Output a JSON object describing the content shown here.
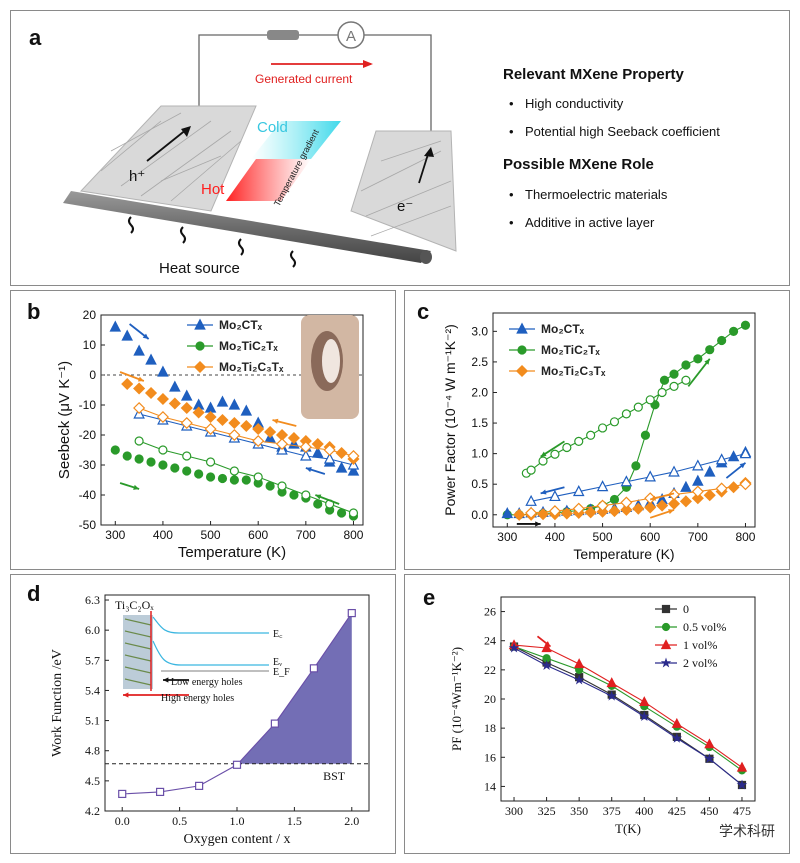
{
  "panels": {
    "a": {
      "label": "a",
      "ammeter": "A",
      "generated_current": "Generated current",
      "cold": "Cold",
      "hot": "Hot",
      "gradient": "Temperature gradient",
      "hole": "h⁺",
      "electron": "e⁻",
      "heat_source": "Heat source",
      "property_title": "Relevant MXene Property",
      "properties": [
        "High conductivity",
        "Potential high Seeback coefficient"
      ],
      "role_title": "Possible MXene Role",
      "roles": [
        "Thermoelectric materials",
        "Additive in active layer"
      ]
    },
    "b": {
      "label": "b"
    },
    "c": {
      "label": "c"
    },
    "d": {
      "label": "d",
      "inset_title": "Ti₃C₂Oₓ",
      "inset_ec": "E꜀",
      "inset_ev": "Eᵥ",
      "inset_ef": "E_F",
      "inset_low": "Low energy holes",
      "inset_high": "High energy holes",
      "bst": "BST"
    },
    "e": {
      "label": "e"
    }
  },
  "watermark": "学术科研",
  "colors": {
    "blue": "#1f5fbf",
    "green": "#2a9a2a",
    "orange": "#f28c1e",
    "red": "#e02020",
    "purple": "#6a4fa8",
    "shade": "#5a55a8",
    "navy": "#2b2b8c"
  },
  "chart_data": [
    {
      "id": "b",
      "type": "scatter",
      "xlabel": "Temperature (K)",
      "ylabel": "Seebeck (μV K⁻¹)",
      "xlim": [
        270,
        820
      ],
      "ylim": [
        -50,
        20
      ],
      "xticks": [
        300,
        400,
        500,
        600,
        700,
        800
      ],
      "yticks": [
        20,
        10,
        0,
        -10,
        -20,
        -30,
        -40,
        -50
      ],
      "legend": [
        "Mo₂CTₓ",
        "Mo₂TiC₂Tₓ",
        "Mo₂Ti₂C₃Tₓ"
      ],
      "series": [
        {
          "name": "Mo₂CTₓ",
          "color": "#1f5fbf",
          "marker": "triangle",
          "filled": true,
          "x": [
            300,
            325,
            350,
            375,
            400,
            425,
            450,
            475,
            500,
            525,
            550,
            575,
            600,
            625,
            650,
            675,
            700,
            725,
            750,
            775,
            800
          ],
          "y": [
            16,
            13,
            8,
            5,
            1,
            -4,
            -7,
            -10,
            -11,
            -9,
            -10,
            -12,
            -16,
            -21,
            -24,
            -23,
            -24,
            -26,
            -29,
            -31,
            -32
          ]
        },
        {
          "name": "Mo₂CTₓ",
          "color": "#1f5fbf",
          "marker": "triangle",
          "filled": false,
          "x": [
            350,
            400,
            450,
            500,
            550,
            600,
            650,
            700,
            750,
            800
          ],
          "y": [
            -13,
            -15,
            -17,
            -19,
            -21,
            -23,
            -25,
            -27,
            -28,
            -30
          ]
        },
        {
          "name": "Mo₂TiC₂Tₓ",
          "color": "#2a9a2a",
          "marker": "circle",
          "filled": true,
          "x": [
            300,
            325,
            350,
            375,
            400,
            425,
            450,
            475,
            500,
            525,
            550,
            575,
            600,
            625,
            650,
            675,
            700,
            725,
            750,
            775,
            800
          ],
          "y": [
            -25,
            -27,
            -28,
            -29,
            -30,
            -31,
            -32,
            -33,
            -34,
            -34.5,
            -35,
            -35,
            -36,
            -37,
            -39,
            -40,
            -41,
            -43,
            -45,
            -46,
            -47
          ]
        },
        {
          "name": "Mo₂TiC₂Tₓ",
          "color": "#2a9a2a",
          "marker": "circle",
          "filled": false,
          "x": [
            350,
            400,
            450,
            500,
            550,
            600,
            650,
            700,
            750,
            800
          ],
          "y": [
            -22,
            -25,
            -27,
            -29,
            -32,
            -34,
            -37,
            -40,
            -43,
            -46
          ]
        },
        {
          "name": "Mo₂Ti₂C₃Tₓ",
          "color": "#f28c1e",
          "marker": "diamond",
          "filled": true,
          "x": [
            325,
            350,
            375,
            400,
            425,
            450,
            475,
            500,
            525,
            550,
            575,
            600,
            625,
            650,
            675,
            700,
            725,
            750,
            775,
            800
          ],
          "y": [
            -3,
            -4.5,
            -6,
            -8,
            -9.5,
            -11,
            -12.5,
            -14,
            -15,
            -16,
            -17,
            -18,
            -19,
            -20,
            -21,
            -22,
            -23,
            -24,
            -26,
            -28
          ]
        },
        {
          "name": "Mo₂Ti₂C₃Tₓ",
          "color": "#f28c1e",
          "marker": "diamond",
          "filled": false,
          "x": [
            350,
            400,
            450,
            500,
            550,
            600,
            650,
            700,
            750,
            800
          ],
          "y": [
            -11,
            -14,
            -16,
            -18,
            -20,
            -22,
            -23,
            -24,
            -25,
            -27
          ]
        }
      ]
    },
    {
      "id": "c",
      "type": "scatter",
      "xlabel": "Temperature (K)",
      "ylabel": "Power Factor (10⁻⁴ W m⁻¹K⁻²)",
      "xlim": [
        270,
        820
      ],
      "ylim": [
        -0.2,
        3.3
      ],
      "xticks": [
        300,
        400,
        500,
        600,
        700,
        800
      ],
      "yticks": [
        0,
        0.5,
        1,
        1.5,
        2,
        2.5,
        3
      ],
      "legend": [
        "Mo₂CTₓ",
        "Mo₂TiC₂Tₓ",
        "Mo₂Ti₂C₃Tₓ"
      ],
      "series": [
        {
          "name": "Mo₂TiC₂Tₓ",
          "color": "#2a9a2a",
          "marker": "circle",
          "filled": true,
          "x": [
            300,
            325,
            350,
            375,
            400,
            425,
            450,
            475,
            500,
            525,
            550,
            570,
            590,
            610,
            630,
            650,
            675,
            700,
            725,
            750,
            775,
            800
          ],
          "y": [
            0,
            0,
            0.01,
            0.02,
            0.03,
            0.05,
            0.07,
            0.1,
            0.15,
            0.25,
            0.45,
            0.8,
            1.3,
            1.8,
            2.2,
            2.3,
            2.45,
            2.55,
            2.7,
            2.85,
            3.0,
            3.1
          ]
        },
        {
          "name": "Mo₂TiC₂Tₓ",
          "color": "#2a9a2a",
          "marker": "circle",
          "filled": false,
          "x": [
            340,
            350,
            375,
            400,
            425,
            450,
            475,
            500,
            525,
            550,
            575,
            600,
            625,
            650,
            675
          ],
          "y": [
            0.68,
            0.73,
            0.88,
            0.99,
            1.1,
            1.2,
            1.3,
            1.42,
            1.52,
            1.65,
            1.76,
            1.88,
            2.0,
            2.1,
            2.2
          ]
        },
        {
          "name": "Mo₂CTₓ",
          "color": "#1f5fbf",
          "marker": "triangle",
          "filled": true,
          "x": [
            300,
            325,
            350,
            375,
            400,
            425,
            450,
            475,
            500,
            525,
            550,
            575,
            600,
            625,
            650,
            675,
            700,
            725,
            750,
            775,
            800
          ],
          "y": [
            0.02,
            0.02,
            0.03,
            0.04,
            0.05,
            0.06,
            0.07,
            0.08,
            0.09,
            0.1,
            0.12,
            0.15,
            0.2,
            0.25,
            0.35,
            0.45,
            0.55,
            0.7,
            0.85,
            0.95,
            1.02
          ]
        },
        {
          "name": "Mo₂CTₓ",
          "color": "#1f5fbf",
          "marker": "triangle",
          "filled": false,
          "x": [
            350,
            400,
            450,
            500,
            550,
            600,
            650,
            700,
            750,
            800
          ],
          "y": [
            0.22,
            0.3,
            0.38,
            0.46,
            0.54,
            0.62,
            0.7,
            0.8,
            0.9,
            1.0
          ]
        },
        {
          "name": "Mo₂Ti₂C₃Tₓ",
          "color": "#f28c1e",
          "marker": "diamond",
          "filled": true,
          "x": [
            325,
            350,
            375,
            400,
            425,
            450,
            475,
            500,
            525,
            550,
            575,
            600,
            625,
            650,
            675,
            700,
            725,
            750,
            775,
            800
          ],
          "y": [
            0,
            0,
            0.01,
            0.01,
            0.02,
            0.03,
            0.04,
            0.05,
            0.06,
            0.08,
            0.1,
            0.12,
            0.15,
            0.18,
            0.22,
            0.27,
            0.32,
            0.38,
            0.45,
            0.52
          ]
        },
        {
          "name": "Mo₂Ti₂C₃Tₓ",
          "color": "#f28c1e",
          "marker": "diamond",
          "filled": false,
          "x": [
            350,
            400,
            450,
            500,
            550,
            600,
            650,
            700,
            750,
            800
          ],
          "y": [
            0.03,
            0.06,
            0.1,
            0.15,
            0.2,
            0.27,
            0.33,
            0.38,
            0.43,
            0.5
          ]
        }
      ]
    },
    {
      "id": "d",
      "type": "line",
      "xlabel": "Oxygen content / x",
      "ylabel": "Work Function /eV",
      "xlim": [
        -0.15,
        2.15
      ],
      "ylim": [
        4.2,
        6.35
      ],
      "xticks": [
        0.0,
        0.5,
        1.0,
        1.5,
        2.0
      ],
      "yticks": [
        4.2,
        4.5,
        4.8,
        5.1,
        5.4,
        5.7,
        6.0,
        6.3
      ],
      "bst_level": 4.67,
      "series": [
        {
          "name": "",
          "color": "#6a4fa8",
          "marker": "square",
          "filled": false,
          "x": [
            0,
            0.33,
            0.67,
            1.0,
            1.33,
            1.67,
            2.0
          ],
          "y": [
            4.37,
            4.39,
            4.45,
            4.66,
            5.07,
            5.62,
            6.17
          ]
        }
      ]
    },
    {
      "id": "e",
      "type": "line",
      "xlabel": "T(K)",
      "ylabel": "PF (10⁻⁴Wm⁻¹K⁻²)",
      "xlim": [
        290,
        485
      ],
      "ylim": [
        13,
        27
      ],
      "xticks": [
        300,
        325,
        350,
        375,
        400,
        425,
        450,
        475
      ],
      "yticks": [
        14,
        16,
        18,
        20,
        22,
        24,
        26
      ],
      "xtick_labels": [
        "300",
        "325",
        "350",
        "375",
        "400",
        "425",
        "450",
        "475"
      ],
      "legend_position": "top-right",
      "series": [
        {
          "name": "0",
          "color": "#333333",
          "marker": "square",
          "x": [
            300,
            325,
            350,
            375,
            400,
            425,
            450,
            475
          ],
          "y": [
            23.6,
            22.5,
            21.5,
            20.3,
            18.9,
            17.4,
            15.9,
            14.1
          ]
        },
        {
          "name": "0.5 vol%",
          "color": "#2a9a2a",
          "marker": "circle",
          "x": [
            300,
            325,
            350,
            375,
            400,
            425,
            450,
            475
          ],
          "y": [
            23.6,
            22.8,
            22.0,
            20.9,
            19.5,
            18.1,
            16.7,
            15.1
          ]
        },
        {
          "name": "1    vol%",
          "color": "#e02020",
          "marker": "triangle",
          "x": [
            300,
            325,
            350,
            375,
            400,
            425,
            450,
            475
          ],
          "y": [
            23.7,
            23.5,
            22.4,
            21.1,
            19.8,
            18.3,
            16.9,
            15.3
          ]
        },
        {
          "name": "2    vol%",
          "color": "#2b2b8c",
          "marker": "star",
          "x": [
            300,
            325,
            350,
            375,
            400,
            425,
            450,
            475
          ],
          "y": [
            23.5,
            22.3,
            21.3,
            20.2,
            18.8,
            17.3,
            15.9,
            14.1
          ]
        }
      ]
    }
  ]
}
